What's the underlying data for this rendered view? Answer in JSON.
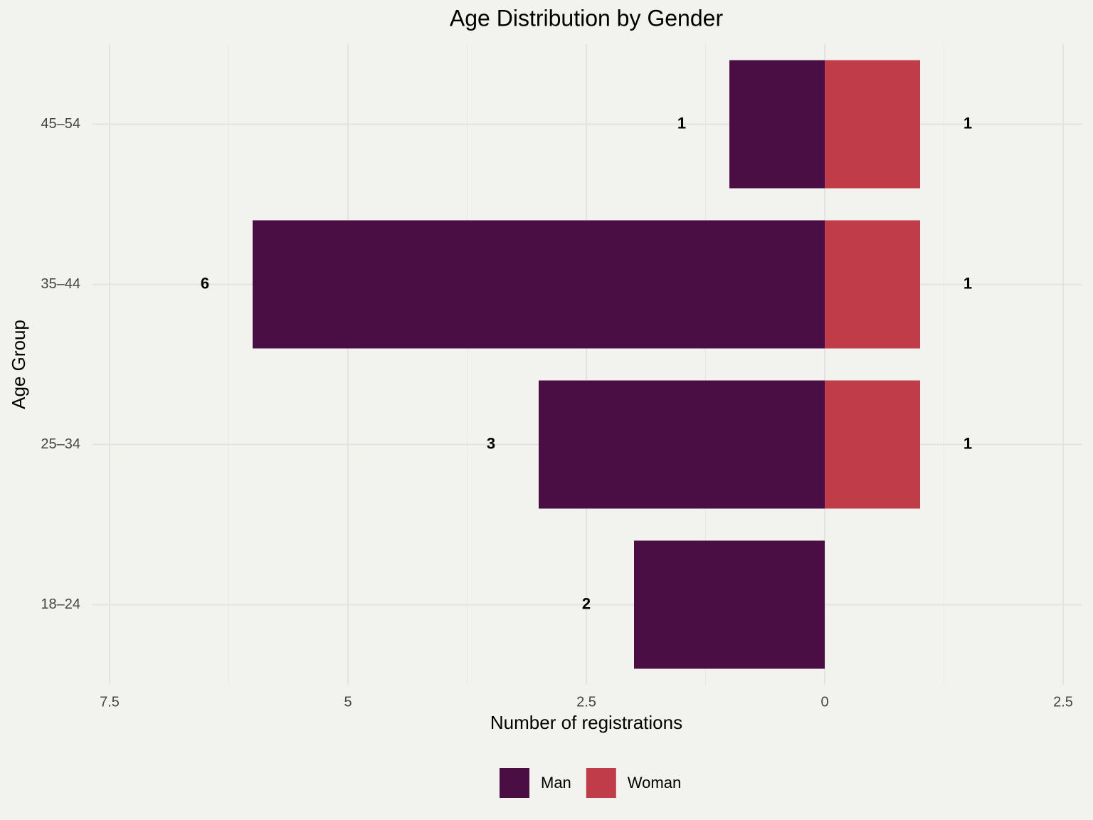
{
  "chart_data": {
    "type": "pyramid",
    "title": "Age Distribution by Gender",
    "x_label": "Number of registrations",
    "y_label": "Age Group",
    "categories": [
      "18–24",
      "25–34",
      "35–44",
      "45–54"
    ],
    "series": [
      {
        "name": "Man",
        "color": "#4a0e45",
        "values": [
          -2,
          -3,
          -6,
          -1
        ],
        "value_labels": [
          "2",
          "3",
          "6",
          "1"
        ]
      },
      {
        "name": "Woman",
        "color": "#c03c48",
        "values": [
          null,
          1,
          1,
          1
        ]
      }
    ],
    "xlim": [
      -7.5,
      2.5
    ],
    "xticks": [
      {
        "value": -7.5,
        "label": "7.5"
      },
      {
        "value": -5,
        "label": "5"
      },
      {
        "value": -2.5,
        "label": "2.5"
      },
      0,
      2.5
    ],
    "grid": true,
    "legend": "bottom"
  }
}
